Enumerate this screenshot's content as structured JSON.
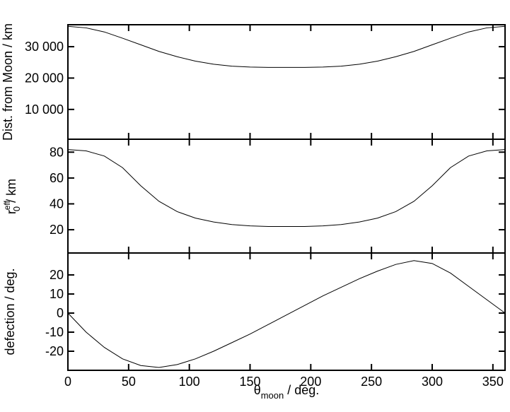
{
  "chart_data": [
    {
      "type": "line",
      "ylabel": "Dist. from Moon / km",
      "x": [
        0,
        15,
        30,
        45,
        60,
        75,
        90,
        105,
        120,
        135,
        150,
        165,
        180,
        195,
        210,
        225,
        240,
        255,
        270,
        285,
        300,
        315,
        330,
        345,
        360
      ],
      "values": [
        36500,
        36000,
        34700,
        32700,
        30600,
        28500,
        26800,
        25400,
        24400,
        23800,
        23500,
        23400,
        23400,
        23400,
        23500,
        23800,
        24400,
        25400,
        26800,
        28500,
        30600,
        32700,
        34700,
        36000,
        36500
      ],
      "color": "#000000",
      "xlim": [
        0,
        360
      ],
      "xticks": [
        0,
        50,
        100,
        150,
        200,
        250,
        300,
        350
      ],
      "ylim": [
        500,
        37000
      ],
      "yticks": [
        {
          "value": 10000,
          "label": "10 000"
        },
        {
          "value": 20000,
          "label": "20 000"
        },
        {
          "value": 30000,
          "label": "30 000"
        }
      ]
    },
    {
      "type": "line",
      "ylabel": {
        "base": "r",
        "sup": "eff",
        "sub": "0",
        "rest": " / km"
      },
      "x": [
        0,
        15,
        30,
        45,
        60,
        75,
        90,
        105,
        120,
        135,
        150,
        165,
        180,
        195,
        210,
        225,
        240,
        255,
        270,
        285,
        300,
        315,
        330,
        345,
        360
      ],
      "values": [
        82,
        81,
        77,
        68,
        54,
        42,
        34,
        29,
        26,
        24,
        23,
        22.5,
        22.5,
        22.5,
        23,
        24,
        26,
        29,
        34,
        42,
        54,
        68,
        77,
        81,
        82
      ],
      "color": "#000000",
      "xlim": [
        0,
        360
      ],
      "xticks": [
        0,
        50,
        100,
        150,
        200,
        250,
        300,
        350
      ],
      "ylim": [
        2,
        90
      ],
      "yticks": [
        20,
        40,
        60,
        80
      ]
    },
    {
      "type": "line",
      "ylabel": "defection / deg.",
      "xlabel": {
        "base": "θ",
        "sub": "moon",
        "rest": " / deg."
      },
      "x": [
        0,
        15,
        30,
        45,
        60,
        75,
        90,
        105,
        120,
        135,
        150,
        165,
        180,
        195,
        210,
        225,
        240,
        255,
        270,
        285,
        300,
        315,
        330,
        345,
        360
      ],
      "values": [
        0,
        -10,
        -18,
        -24,
        -27.5,
        -28.5,
        -27,
        -24,
        -20,
        -15.5,
        -11,
        -6,
        -1,
        4,
        9,
        13.5,
        18,
        22,
        25.5,
        27.5,
        26,
        21,
        14,
        7,
        0
      ],
      "color": "#000000",
      "xlim": [
        0,
        360
      ],
      "xticks": [
        0,
        50,
        100,
        150,
        200,
        250,
        300,
        350
      ],
      "ylim": [
        -30,
        31.5
      ],
      "yticks": [
        -20,
        -10,
        0,
        10,
        20
      ]
    }
  ]
}
